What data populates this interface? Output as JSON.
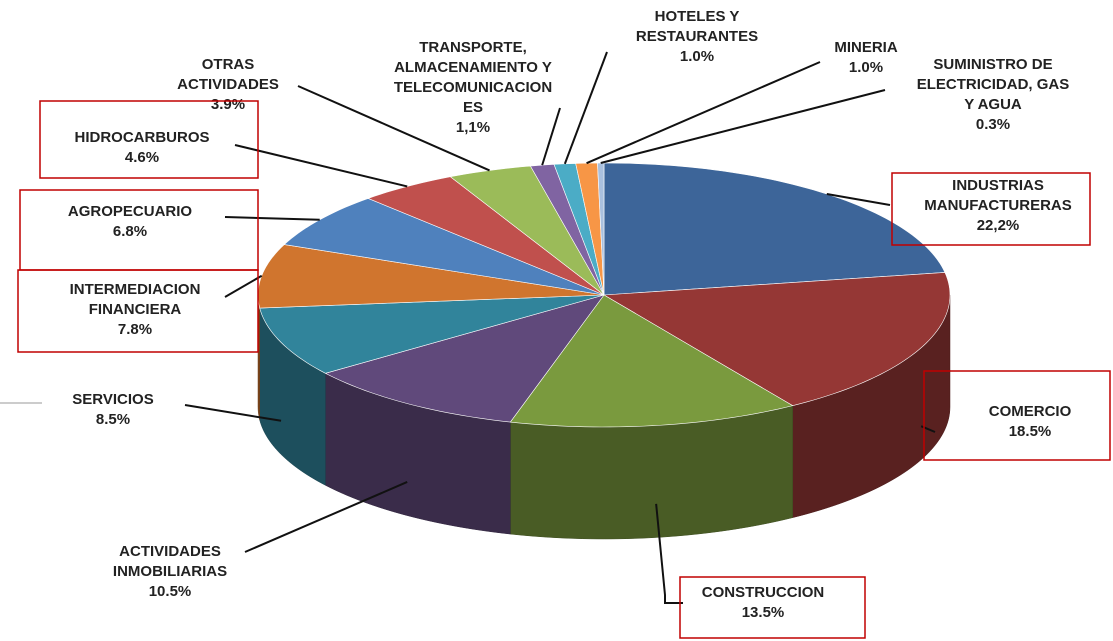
{
  "chart_data": {
    "type": "pie",
    "categories": [
      "INDUSTRIAS\nMANUFACTURERAS",
      "COMERCIO",
      "CONSTRUCCION",
      "ACTIVIDADES\nINMOBILIARIAS",
      "SERVICIOS",
      "INTERMEDIACION\nFINANCIERA",
      "AGROPECUARIO",
      "HIDROCARBUROS",
      "OTRAS\nACTIVIDADES",
      "TRANSPORTE,\nALMACENAMIENTO Y\nTELECOMUNICACION\nES",
      "HOTELES Y\nRESTAURANTES",
      "MINERIA",
      "SUMINISTRO DE\nELECTRICIDAD, GAS\nY AGUA"
    ],
    "values": [
      22.2,
      18.5,
      13.5,
      10.5,
      8.5,
      7.8,
      6.8,
      4.6,
      3.9,
      1.1,
      1.0,
      1.0,
      0.3
    ],
    "value_labels": [
      "22,2%",
      "18.5%",
      "13.5%",
      "10.5%",
      "8.5%",
      "7.8%",
      "6.8%",
      "4.6%",
      "3.9%",
      "1,1%",
      "1.0%",
      "1.0%",
      "0.3%"
    ],
    "colors": [
      "#3d6599",
      "#953735",
      "#7a9a3e",
      "#60497b",
      "#31849b",
      "#d0752e",
      "#4f81bd",
      "#c0504d",
      "#9bbb59",
      "#8064a2",
      "#4bacc6",
      "#f79646",
      "#aac0de"
    ]
  }
}
